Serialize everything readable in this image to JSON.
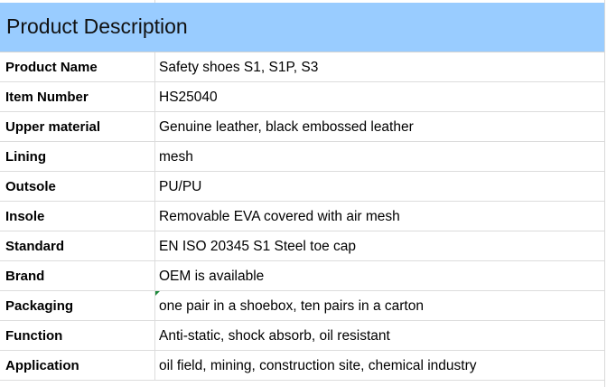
{
  "title": "Product Description",
  "rows": [
    {
      "label": "Product Name",
      "value": "Safety shoes S1, S1P, S3"
    },
    {
      "label": "Item Number",
      "value": "HS25040"
    },
    {
      "label": "Upper material",
      "value": "Genuine leather, black embossed leather"
    },
    {
      "label": "Lining",
      "value": "mesh"
    },
    {
      "label": "Outsole",
      "value": "PU/PU"
    },
    {
      "label": "Insole",
      "value": "Removable EVA covered with air mesh"
    },
    {
      "label": "Standard",
      "value": "EN ISO 20345 S1 Steel toe cap"
    },
    {
      "label": "Brand",
      "value": "OEM is available"
    },
    {
      "label": "Packaging",
      "value": "one pair in a shoebox, ten pairs in a carton"
    },
    {
      "label": "Function",
      "value": "Anti-static, shock absorb, oil resistant"
    },
    {
      "label": "Application",
      "value": "oil field, mining, construction site, chemical industry"
    }
  ],
  "colors": {
    "header_bg": "#99ccff",
    "gridline": "#dcdcdc",
    "comment_marker": "#1e8a3c"
  }
}
